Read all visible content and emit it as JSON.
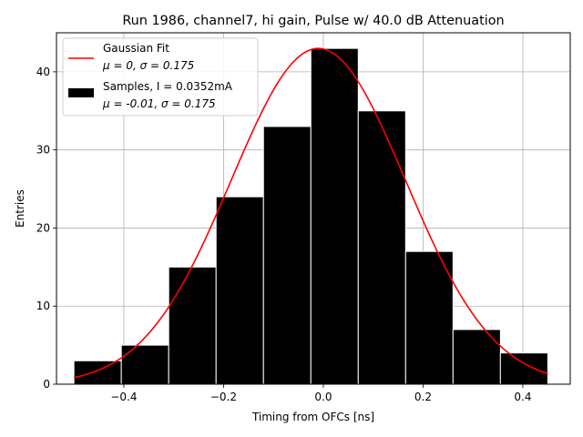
{
  "chart_data": {
    "type": "bar",
    "title": "Run 1986, channel7, hi gain, Pulse w/ 40.0 dB Attenuation",
    "xlabel": "Timing from OFCs [ns]",
    "ylabel": "Entries",
    "xlim": [
      -0.535,
      0.495
    ],
    "ylim": [
      0,
      45
    ],
    "grid": true,
    "legend_position": "top-left",
    "xticks": [
      -0.4,
      -0.2,
      0.0,
      0.2,
      0.4
    ],
    "xtick_labels": [
      "−0.4",
      "−0.2",
      "0.0",
      "0.2",
      "0.4"
    ],
    "yticks": [
      0,
      10,
      20,
      30,
      40
    ],
    "ytick_labels": [
      "0",
      "10",
      "20",
      "30",
      "40"
    ],
    "histogram": {
      "name": "Samples, I = 0.0352mA",
      "stats": "μ = -0.01, σ = 0.175",
      "bin_edges": [
        -0.5,
        -0.405,
        -0.31,
        -0.215,
        -0.12,
        -0.025,
        0.07,
        0.165,
        0.26,
        0.355,
        0.45
      ],
      "counts": [
        3,
        5,
        15,
        24,
        33,
        43,
        35,
        17,
        7,
        4
      ],
      "color": "#000000",
      "edgecolor": "#ffffff"
    },
    "fit": {
      "name": "Gaussian Fit",
      "stats": "μ = 0, σ = 0.175",
      "mu": -0.01,
      "sigma": 0.175,
      "amplitude": 43,
      "x_range": [
        -0.5,
        0.45
      ],
      "color": "#ff0000"
    }
  }
}
